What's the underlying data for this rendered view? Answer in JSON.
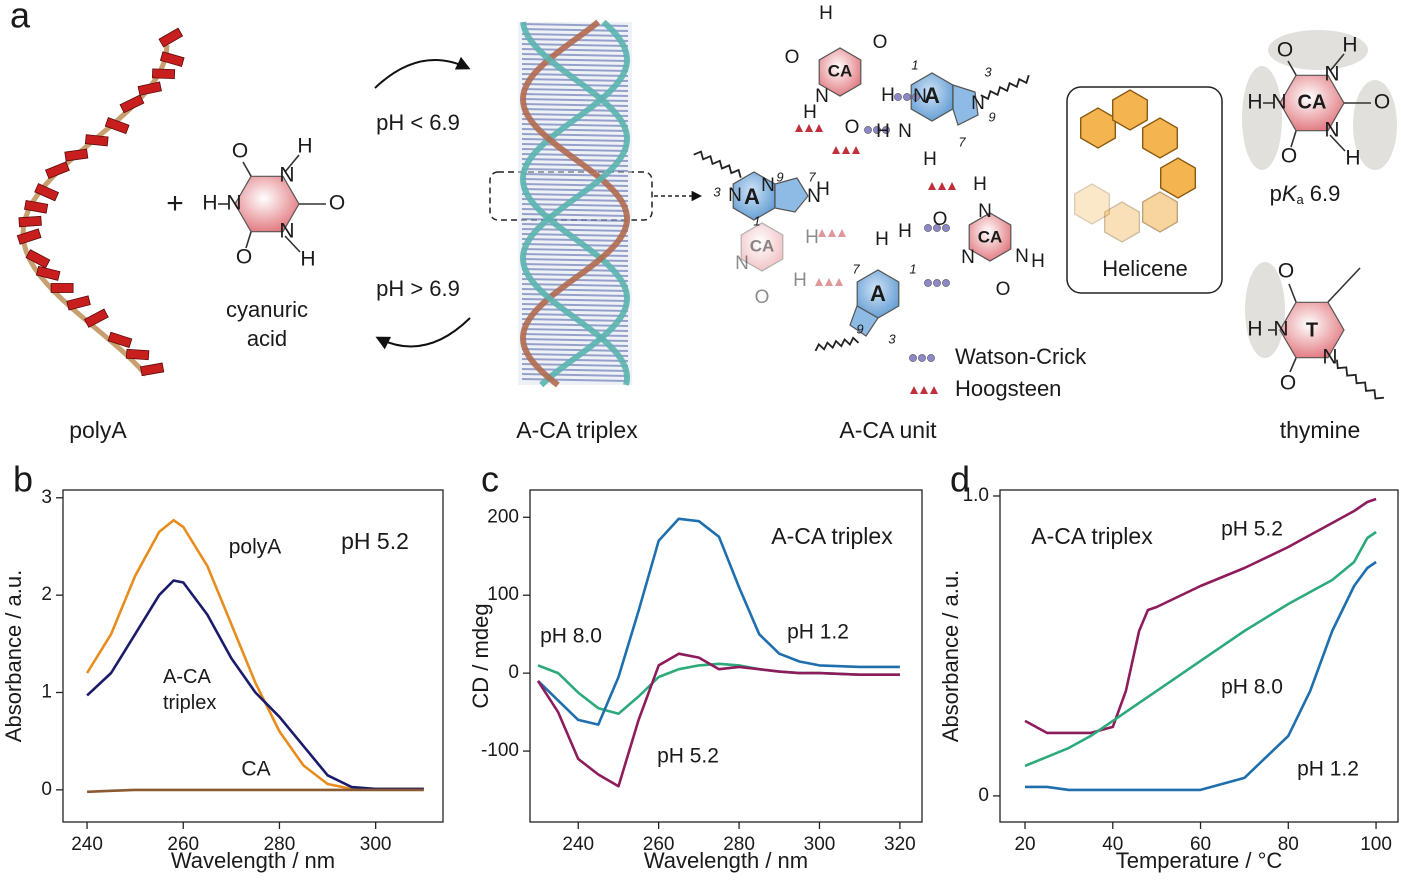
{
  "panel_a": {
    "label": "a",
    "captions": {
      "polyA": "polyA",
      "triplex": "A-CA triplex",
      "unit": "A-CA unit",
      "thymine": "thymine"
    },
    "plus": "+",
    "cyanuric_acid": {
      "name": "cyanuric acid",
      "atoms": [
        "O",
        "N",
        "H",
        "O",
        "N",
        "H",
        "O",
        "N",
        "H"
      ]
    },
    "forward": "pH < 6.9",
    "reverse": "pH > 6.9",
    "helicene": "Helicene",
    "legend": {
      "watson_crick": "Watson-Crick",
      "hoogsteen": "Hoogsteen"
    },
    "ca_pka": {
      "atoms": [
        "O",
        "N",
        "H",
        "O",
        "N",
        "H",
        "O",
        "N",
        "H",
        "CA"
      ],
      "pka": {
        "p": "p",
        "K": "K",
        "a": "a",
        "value": "6.9"
      }
    },
    "thymine_atoms": [
      "O",
      "H",
      "N",
      "T",
      "O",
      "N"
    ],
    "unit_atoms": [
      "H",
      "O",
      "O",
      "CA",
      "N",
      "H",
      "H",
      "O",
      "1",
      "N",
      "3",
      "A",
      "9",
      "N",
      "7",
      "H",
      "N",
      "H",
      "9",
      "N",
      "3",
      "N",
      "A",
      "7",
      "N",
      "1",
      "H",
      "H",
      "CA",
      "N",
      "H",
      "O",
      "H",
      "H",
      "7",
      "A",
      "1",
      "9",
      "3",
      "CA",
      "N",
      "H",
      "O",
      "N",
      "O",
      "N",
      "H"
    ]
  },
  "chart_data": [
    {
      "type": "line",
      "panel": "b",
      "annotation": "pH 5.2",
      "x_label": "Wavelength / nm",
      "y_label": "Absorbance / a.u.",
      "x": [
        240,
        245,
        250,
        255,
        258,
        260,
        265,
        270,
        275,
        280,
        285,
        290,
        295,
        300,
        305,
        310
      ],
      "series": [
        {
          "name": "polyA",
          "color": "#e88c1e",
          "values": [
            1.2,
            1.6,
            2.2,
            2.65,
            2.77,
            2.7,
            2.3,
            1.7,
            1.1,
            0.6,
            0.25,
            0.06,
            0.01,
            0.01,
            0.01,
            0.01
          ]
        },
        {
          "name": "A-CA triplex",
          "color": "#1b1b6b",
          "values": [
            0.97,
            1.2,
            1.6,
            2.0,
            2.15,
            2.13,
            1.8,
            1.35,
            1.0,
            0.75,
            0.45,
            0.15,
            0.03,
            0.01,
            0.01,
            0.01
          ]
        },
        {
          "name": "CA",
          "color": "#8a5a30",
          "values": [
            -0.02,
            -0.01,
            0,
            0,
            0,
            0,
            0,
            0,
            0,
            0,
            0,
            0,
            0,
            0,
            0,
            0
          ]
        }
      ],
      "xlim": [
        235,
        314
      ],
      "ylim": [
        -0.33,
        3.08
      ],
      "xticks": [
        240,
        260,
        280,
        300
      ],
      "yticks": [
        0,
        1,
        2,
        3
      ]
    },
    {
      "type": "line",
      "panel": "c",
      "annotation": "A-CA triplex",
      "x_label": "Wavelength / nm",
      "y_label": "CD / mdeg",
      "x": [
        230,
        235,
        240,
        245,
        250,
        255,
        260,
        265,
        270,
        275,
        280,
        285,
        290,
        295,
        300,
        310,
        320
      ],
      "series": [
        {
          "name": "pH 8.0",
          "color": "#2daa7b",
          "values": [
            10,
            0,
            -25,
            -45,
            -52,
            -30,
            -5,
            5,
            10,
            12,
            10,
            5,
            2,
            0,
            0,
            -2,
            -2
          ]
        },
        {
          "name": "pH 1.2",
          "color": "#1f6fae",
          "values": [
            -10,
            -35,
            -60,
            -66,
            -5,
            80,
            170,
            198,
            195,
            175,
            110,
            50,
            25,
            15,
            10,
            8,
            8
          ]
        },
        {
          "name": "pH 5.2",
          "color": "#8e1b5c",
          "values": [
            -10,
            -50,
            -110,
            -130,
            -145,
            -60,
            10,
            25,
            20,
            5,
            8,
            5,
            2,
            0,
            0,
            -2,
            -2
          ]
        }
      ],
      "xlim": [
        228,
        325.5
      ],
      "ylim": [
        -191,
        235
      ],
      "xticks": [
        240,
        260,
        280,
        300,
        320
      ],
      "yticks": [
        -100,
        0,
        100,
        200
      ]
    },
    {
      "type": "line",
      "panel": "d",
      "annotation": "A-CA triplex",
      "x_label": "Temperature / °C",
      "y_label": "Absorbance / a.u.",
      "x": [
        20,
        25,
        30,
        35,
        40,
        43,
        46,
        48,
        50,
        60,
        70,
        80,
        85,
        90,
        95,
        98,
        100
      ],
      "series": [
        {
          "name": "pH 5.2",
          "color": "#8e1b5c",
          "values": [
            0.25,
            0.21,
            0.21,
            0.21,
            0.23,
            0.35,
            0.55,
            0.62,
            0.63,
            0.7,
            0.76,
            0.83,
            0.87,
            0.91,
            0.95,
            0.98,
            0.99
          ]
        },
        {
          "name": "pH 8.0",
          "color": "#2daa7b",
          "values": [
            0.1,
            0.13,
            0.16,
            0.2,
            0.25,
            0.28,
            0.31,
            0.33,
            0.35,
            0.45,
            0.55,
            0.64,
            0.68,
            0.72,
            0.78,
            0.86,
            0.88
          ]
        },
        {
          "name": "pH 1.2",
          "color": "#1f6fae",
          "values": [
            0.03,
            0.03,
            0.02,
            0.02,
            0.02,
            0.02,
            0.02,
            0.02,
            0.02,
            0.02,
            0.06,
            0.2,
            0.35,
            0.55,
            0.7,
            0.76,
            0.78
          ]
        }
      ],
      "xlim": [
        14.3,
        105
      ],
      "ylim": [
        -0.087,
        1.02
      ],
      "xticks": [
        20,
        40,
        60,
        80,
        100
      ],
      "yticks": [
        0,
        {
          "value": 1,
          "label": "1.0"
        }
      ]
    }
  ]
}
